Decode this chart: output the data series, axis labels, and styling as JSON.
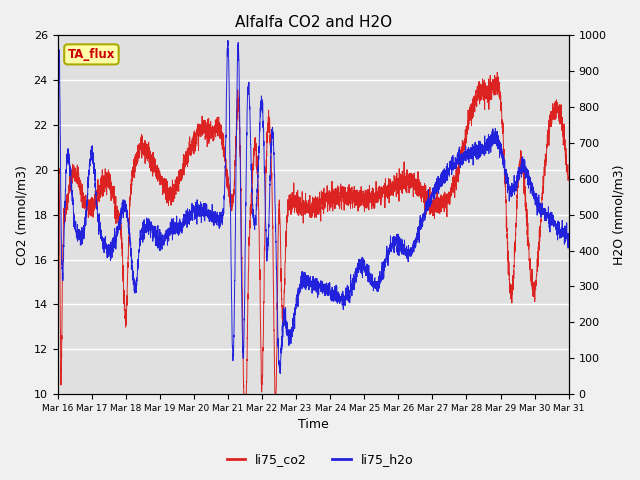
{
  "title": "Alfalfa CO2 and H2O",
  "xlabel": "Time",
  "ylabel_left": "CO2 (mmol/m3)",
  "ylabel_right": "H2O (mmol/m3)",
  "ylim_left": [
    10,
    26
  ],
  "ylim_right": [
    0,
    1000
  ],
  "yticks_left": [
    10,
    12,
    14,
    16,
    18,
    20,
    22,
    24,
    26
  ],
  "yticks_right": [
    0,
    100,
    200,
    300,
    400,
    500,
    600,
    700,
    800,
    900,
    1000
  ],
  "xtick_labels": [
    "Mar 16",
    "Mar 17",
    "Mar 18",
    "Mar 19",
    "Mar 20",
    "Mar 21",
    "Mar 22",
    "Mar 23",
    "Mar 24",
    "Mar 25",
    "Mar 26",
    "Mar 27",
    "Mar 28",
    "Mar 29",
    "Mar 30",
    "Mar 31"
  ],
  "annotation_text": "TA_flux",
  "annotation_bg": "#ffffaa",
  "annotation_border": "#aaaa00",
  "co2_color": "#dd2222",
  "h2o_color": "#2222dd",
  "plot_bg": "#e0e0e0",
  "fig_bg": "#f0f0f0",
  "grid_color": "#ffffff",
  "legend_co2": "li75_co2",
  "legend_h2o": "li75_h2o"
}
